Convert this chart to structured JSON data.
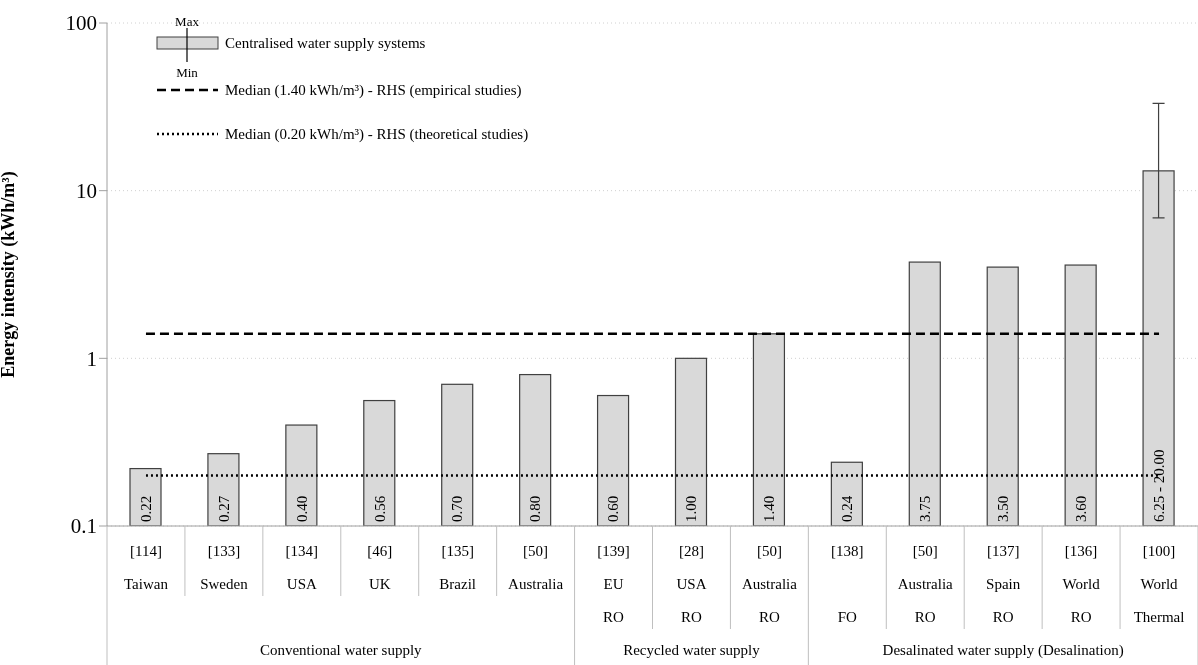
{
  "chart_data": {
    "type": "bar",
    "ylabel": "Energy intensity (kWh/m³)",
    "log": true,
    "ylim": [
      0.1,
      100
    ],
    "yticks": [
      0.1,
      1,
      10,
      100
    ],
    "grid": "y",
    "legend": "top left",
    "categories": [
      "[114]\nTaiwan",
      "[133]\nSweden",
      "[134]\nUSA",
      "[46]\nUK",
      "[135]\nBrazil",
      "[50]\nAustralia",
      "[139]\nEU\nRO",
      "[28]\nUSA\nRO",
      "[50]\nAustralia\nRO",
      "[138]\n\nFO",
      "[50]\nAustralia\nRO",
      "[137]\nSpain\nRO",
      "[136]\nWorld\nRO",
      "[100]\nWorld\nThermal"
    ],
    "series": [
      {
        "name": "Centralised water supply systems",
        "color": "#d9d9d9",
        "values": [
          0.22,
          0.27,
          0.4,
          0.56,
          0.7,
          0.8,
          0.6,
          1.0,
          1.4,
          0.24,
          3.75,
          3.5,
          3.6,
          13.125
        ],
        "value_labels": [
          "0.22",
          "0.27",
          "0.40",
          "0.56",
          "0.70",
          "0.80",
          "0.60",
          "1.00",
          "1.40",
          "0.24",
          "3.75",
          "3.50",
          "3.60",
          null
        ],
        "errors": [
          null,
          null,
          null,
          null,
          null,
          null,
          null,
          null,
          null,
          null,
          null,
          null,
          null,
          [
            6.875,
            33.125
          ]
        ]
      }
    ],
    "ref_lines": [
      {
        "axis": "y",
        "value": 1.4,
        "label": "Median (1.40 kWh/m³) - RHS (empirical studies)",
        "line_style": "dashed",
        "color": "#000000"
      },
      {
        "axis": "y",
        "value": 0.2,
        "label": "Median (0.20 kWh/m³) - RHS (theoretical studies)",
        "line_style": "dotted",
        "color": "#000000"
      }
    ],
    "annotations": [
      "Max",
      "Min",
      "Conventional water supply",
      "Recycled water supply",
      "Desalinated water supply (Desalination)",
      {
        "text": "6.25 - 20.00",
        "x": "[100]\nWorld\nThermal",
        "y": 0.1
      }
    ]
  }
}
